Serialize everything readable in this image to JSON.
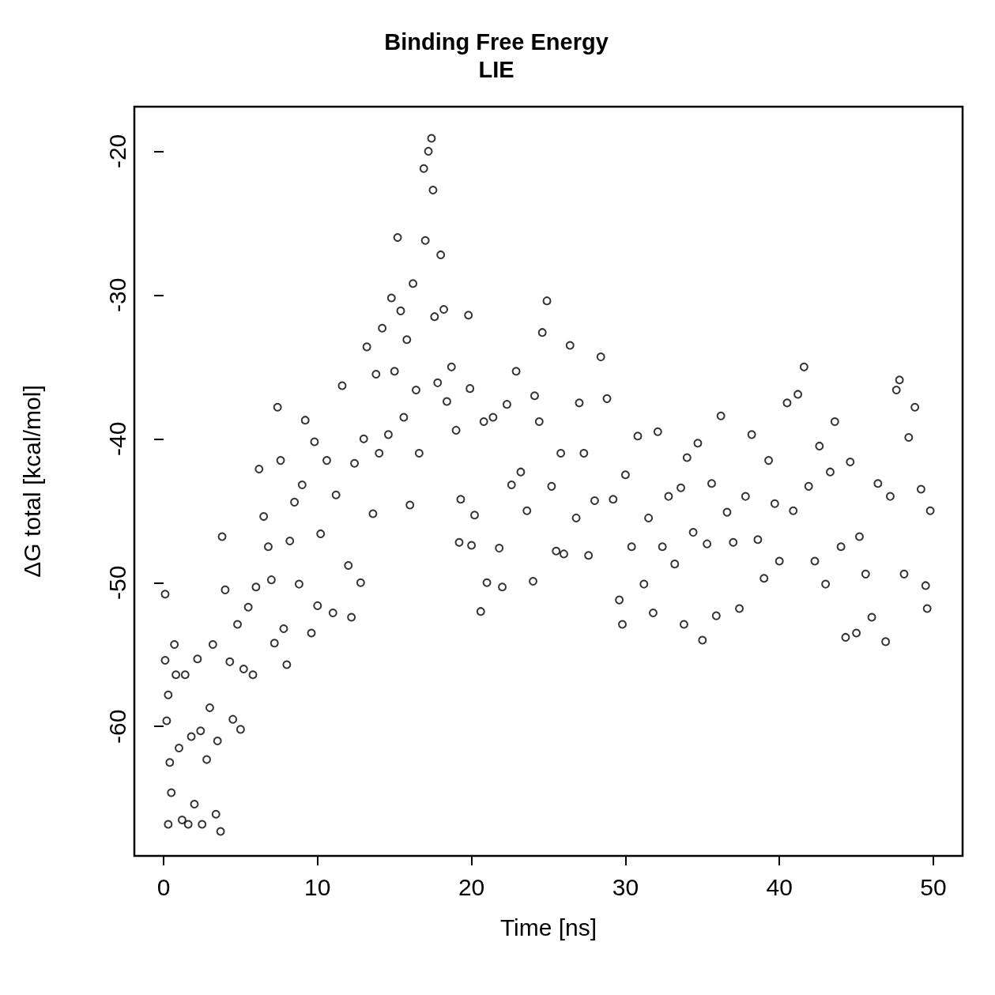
{
  "chart_data": {
    "type": "scatter",
    "title": "Binding Free Energy",
    "subtitle": "LIE",
    "xlabel": "Time [ns]",
    "ylabel": "ΔG total [kcal/mol]",
    "xlim": [
      -1.9,
      51.9
    ],
    "ylim": [
      -69,
      -16.9
    ],
    "xticks": [
      0,
      10,
      20,
      30,
      40,
      50
    ],
    "yticks": [
      -20,
      -30,
      -40,
      -50,
      -60
    ],
    "grid": false,
    "marker": "circle",
    "series": [
      {
        "color": "#000000",
        "x": [
          0.1,
          0.1,
          0.2,
          0.3,
          0.4,
          0.5,
          0.3,
          0.7,
          0.8,
          1.0,
          1.2,
          1.4,
          1.6,
          1.8,
          2.0,
          2.2,
          2.4,
          2.5,
          2.8,
          3.0,
          3.2,
          3.4,
          3.5,
          3.7,
          3.8,
          4.0,
          4.3,
          4.5,
          4.8,
          5.0,
          5.2,
          5.5,
          5.8,
          6.0,
          6.2,
          6.5,
          6.8,
          7.0,
          7.2,
          7.4,
          7.6,
          7.8,
          8.0,
          8.2,
          8.5,
          8.8,
          9.0,
          9.2,
          9.6,
          9.8,
          10.0,
          10.2,
          10.6,
          11.0,
          11.2,
          11.6,
          12.0,
          12.2,
          12.4,
          12.8,
          13.0,
          13.2,
          13.6,
          13.8,
          14.0,
          14.2,
          14.6,
          14.8,
          15.0,
          15.2,
          15.4,
          15.6,
          15.8,
          16.0,
          16.2,
          16.4,
          16.6,
          16.9,
          17.0,
          17.2,
          17.4,
          17.5,
          17.6,
          17.8,
          18.0,
          18.2,
          18.4,
          18.7,
          19.0,
          19.2,
          19.3,
          19.8,
          19.9,
          20.0,
          20.2,
          20.6,
          20.8,
          21.0,
          21.4,
          21.8,
          22.0,
          22.3,
          22.6,
          22.9,
          23.2,
          23.6,
          24.0,
          24.1,
          24.4,
          24.6,
          24.9,
          25.2,
          25.5,
          25.8,
          26.0,
          26.4,
          26.8,
          27.0,
          27.3,
          27.6,
          28.0,
          28.4,
          28.8,
          29.2,
          29.6,
          29.8,
          30.0,
          30.4,
          30.8,
          31.2,
          31.5,
          31.8,
          32.1,
          32.4,
          32.8,
          33.2,
          33.6,
          33.8,
          34.0,
          34.4,
          34.7,
          35.0,
          35.3,
          35.6,
          35.9,
          36.2,
          36.6,
          37.0,
          37.4,
          37.8,
          38.2,
          38.6,
          39.0,
          39.3,
          39.7,
          40.0,
          40.5,
          40.9,
          41.2,
          41.6,
          41.9,
          42.3,
          42.6,
          43.0,
          43.3,
          43.6,
          44.0,
          44.3,
          44.6,
          45.0,
          45.2,
          45.6,
          46.0,
          46.4,
          46.9,
          47.2,
          47.6,
          47.8,
          48.1,
          48.4,
          48.8,
          49.2,
          49.5,
          49.6,
          49.8
        ],
        "values": [
          -50.8,
          -55.4,
          -59.6,
          -57.8,
          -62.5,
          -64.6,
          -66.8,
          -54.3,
          -56.4,
          -61.5,
          -66.5,
          -56.4,
          -66.8,
          -60.7,
          -65.4,
          -55.3,
          -60.3,
          -66.8,
          -62.3,
          -58.7,
          -54.3,
          -66.1,
          -61,
          -67.3,
          -46.8,
          -50.5,
          -55.5,
          -59.5,
          -52.9,
          -60.2,
          -56,
          -51.7,
          -56.4,
          -50.3,
          -42.1,
          -45.4,
          -47.5,
          -49.8,
          -54.2,
          -37.8,
          -41.5,
          -53.2,
          -55.7,
          -47.1,
          -44.4,
          -50.1,
          -43.2,
          -38.7,
          -53.5,
          -40.2,
          -51.6,
          -46.6,
          -41.5,
          -52.1,
          -43.9,
          -36.3,
          -48.8,
          -52.4,
          -41.7,
          -50,
          -40,
          -33.6,
          -45.2,
          -35.5,
          -41,
          -32.3,
          -39.7,
          -30.2,
          -35.3,
          -26,
          -31.1,
          -38.5,
          -33.1,
          -44.6,
          -29.2,
          -36.6,
          -41,
          -21.2,
          -26.2,
          -20,
          -19.1,
          -22.7,
          -31.5,
          -36.1,
          -27.2,
          -31,
          -37.4,
          -35,
          -39.4,
          -47.2,
          -44.2,
          -31.4,
          -36.5,
          -47.4,
          -45.3,
          -52,
          -38.8,
          -50,
          -38.5,
          -47.6,
          -50.3,
          -37.6,
          -43.2,
          -35.3,
          -42.3,
          -45,
          -49.9,
          -37,
          -38.8,
          -32.6,
          -30.4,
          -43.3,
          -47.8,
          -41,
          -48,
          -33.5,
          -45.5,
          -37.5,
          -41,
          -48.1,
          -44.3,
          -34.3,
          -37.2,
          -44.2,
          -51.2,
          -52.9,
          -42.5,
          -47.5,
          -39.8,
          -50.1,
          -45.5,
          -52.1,
          -39.5,
          -47.5,
          -44,
          -48.7,
          -43.4,
          -52.9,
          -41.3,
          -46.5,
          -40.3,
          -54,
          -47.3,
          -43.1,
          -52.3,
          -38.4,
          -45.1,
          -47.2,
          -51.8,
          -44,
          -39.7,
          -47,
          -49.7,
          -41.5,
          -44.5,
          -48.5,
          -37.5,
          -45,
          -36.9,
          -35,
          -43.3,
          -48.5,
          -40.5,
          -50.1,
          -42.3,
          -38.8,
          -47.5,
          -53.8,
          -41.6,
          -53.5,
          -46.8,
          -49.4,
          -52.4,
          -43.1,
          -54.1,
          -44,
          -36.6,
          -35.9,
          -49.4,
          -39.9,
          -37.8,
          -43.5,
          -50.2,
          -51.8,
          -45
        ]
      }
    ]
  }
}
